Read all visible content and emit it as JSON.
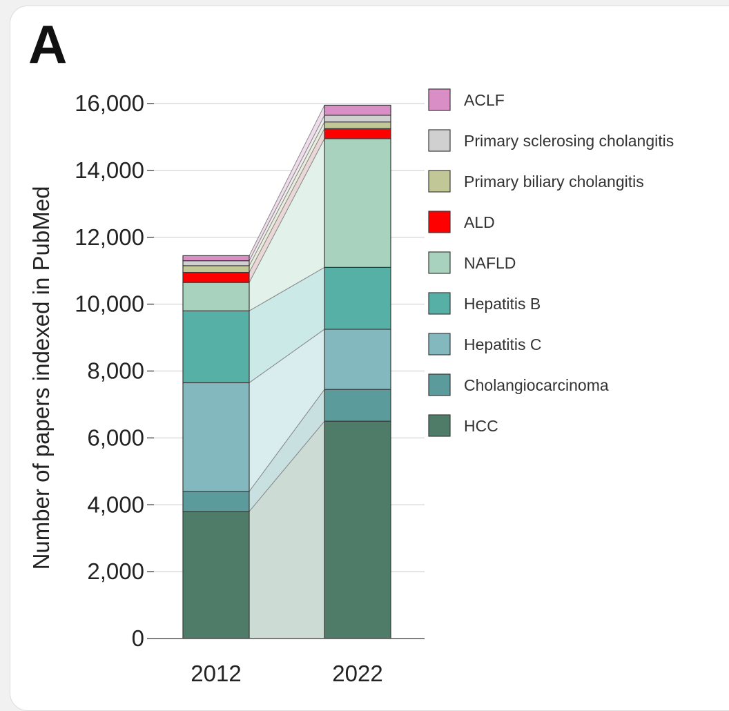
{
  "panel_label": "A",
  "chart_data": {
    "type": "bar",
    "stacked": true,
    "categories": [
      "2012",
      "2022"
    ],
    "ylabel": "Number of papers indexed in PubMed",
    "xlabel": "",
    "ylim": [
      0,
      16000
    ],
    "yticks": [
      0,
      2000,
      4000,
      6000,
      8000,
      10000,
      12000,
      14000,
      16000
    ],
    "ytick_labels": [
      "0",
      "2,000",
      "4,000",
      "6,000",
      "8,000",
      "10,000",
      "12,000",
      "14,000",
      "16,000"
    ],
    "grid": true,
    "connector_bands": true,
    "legend_position": "right",
    "series": [
      {
        "name": "HCC",
        "color": "#4e7c68",
        "band_color": "#ccdcd5",
        "values": [
          3800,
          6500
        ]
      },
      {
        "name": "Cholangiocarcinoma",
        "color": "#5b9b9c",
        "band_color": "#c8e0e0",
        "values": [
          600,
          950
        ]
      },
      {
        "name": "Hepatitis C",
        "color": "#82b8be",
        "band_color": "#d9ecee",
        "values": [
          3250,
          1800
        ]
      },
      {
        "name": "Hepatitis B",
        "color": "#57b0a6",
        "band_color": "#cbe9e6",
        "values": [
          2150,
          1850
        ]
      },
      {
        "name": "NAFLD",
        "color": "#a8d2bd",
        "band_color": "#e2f1ea",
        "values": [
          850,
          3850
        ]
      },
      {
        "name": "ALD",
        "color": "#ff0000",
        "band_color": "#ead7d7",
        "values": [
          300,
          300
        ]
      },
      {
        "name": "Primary biliary cholangitis",
        "color": "#c2c797",
        "band_color": "#ebeddc",
        "values": [
          200,
          200
        ]
      },
      {
        "name": "Primary sclerosing cholangitis",
        "color": "#d0d0d0",
        "band_color": "#ededed",
        "values": [
          150,
          200
        ]
      },
      {
        "name": "ACLF",
        "color": "#d98ec6",
        "band_color": "#f1dcec",
        "values": [
          150,
          300
        ]
      }
    ],
    "legend_order": [
      "ACLF",
      "Primary sclerosing cholangitis",
      "Primary biliary cholangitis",
      "ALD",
      "NAFLD",
      "Hepatitis B",
      "Hepatitis C",
      "Cholangiocarcinoma",
      "HCC"
    ]
  }
}
